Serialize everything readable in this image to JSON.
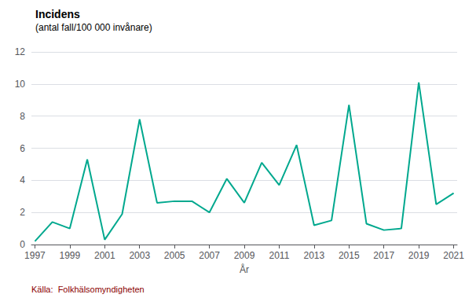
{
  "chart_data": {
    "type": "line",
    "title": "Incidens",
    "subtitle": "(antal fall/100 000 invånare)",
    "x_label": "År",
    "annotations": [
      {
        "text": "Källa:  Folkhälsomyndigheten",
        "color": "#8B0000"
      }
    ],
    "x": [
      1997,
      1998,
      1999,
      2000,
      2001,
      2002,
      2003,
      2004,
      2005,
      2006,
      2007,
      2008,
      2009,
      2010,
      2011,
      2012,
      2013,
      2014,
      2015,
      2016,
      2017,
      2018,
      2019,
      2020,
      2021
    ],
    "values": [
      0.2,
      1.4,
      1.0,
      5.3,
      0.3,
      1.9,
      7.8,
      2.6,
      2.7,
      2.7,
      2.0,
      4.1,
      2.6,
      5.1,
      3.7,
      6.2,
      1.2,
      1.5,
      8.7,
      1.3,
      0.9,
      1.0,
      10.1,
      2.5,
      3.2
    ],
    "color": "#00A88E",
    "xlim": [
      1996.8,
      2021.2
    ],
    "xticks": [
      1997,
      1999,
      2001,
      2003,
      2005,
      2007,
      2009,
      2011,
      2013,
      2015,
      2017,
      2019,
      2021
    ],
    "ylim": [
      0,
      12
    ],
    "yticks": [
      0,
      2,
      4,
      6,
      8,
      10,
      12
    ],
    "grid": true
  }
}
